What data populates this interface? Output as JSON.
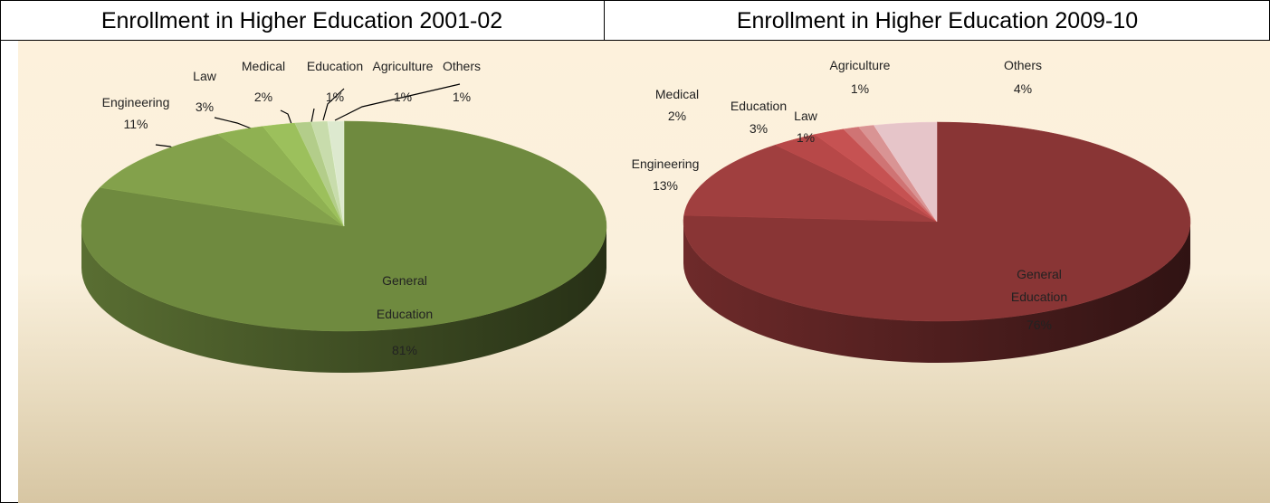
{
  "chart_data": [
    {
      "type": "pie",
      "title": "Enrollment in Higher Education 2001-02",
      "categories": [
        "General Education",
        "Engineering",
        "Law",
        "Medical",
        "Education",
        "Agriculture",
        "Others"
      ],
      "values": [
        81,
        11,
        3,
        2,
        1,
        1,
        1
      ],
      "value_labels": [
        "81%",
        "11%",
        "3%",
        "2%",
        "1%",
        "1%",
        "1%"
      ],
      "colors": [
        "#6f8a3f",
        "#83a14b",
        "#8fb152",
        "#9cc05c",
        "#b3cd8a",
        "#c8dcac",
        "#dde9cf"
      ]
    },
    {
      "type": "pie",
      "title": "Enrollment in Higher Education 2009-10",
      "categories": [
        "General Education",
        "Engineering",
        "Education",
        "Medical",
        "Law",
        "Agriculture",
        "Others"
      ],
      "values": [
        76,
        13,
        3,
        2,
        1,
        1,
        4
      ],
      "value_labels": [
        "76%",
        "13%",
        "3%",
        "2%",
        "1%",
        "1%",
        "4%"
      ],
      "colors": [
        "#893535",
        "#a03f3f",
        "#b74848",
        "#c65252",
        "#cf7474",
        "#d99494",
        "#e6c5c9"
      ]
    }
  ]
}
